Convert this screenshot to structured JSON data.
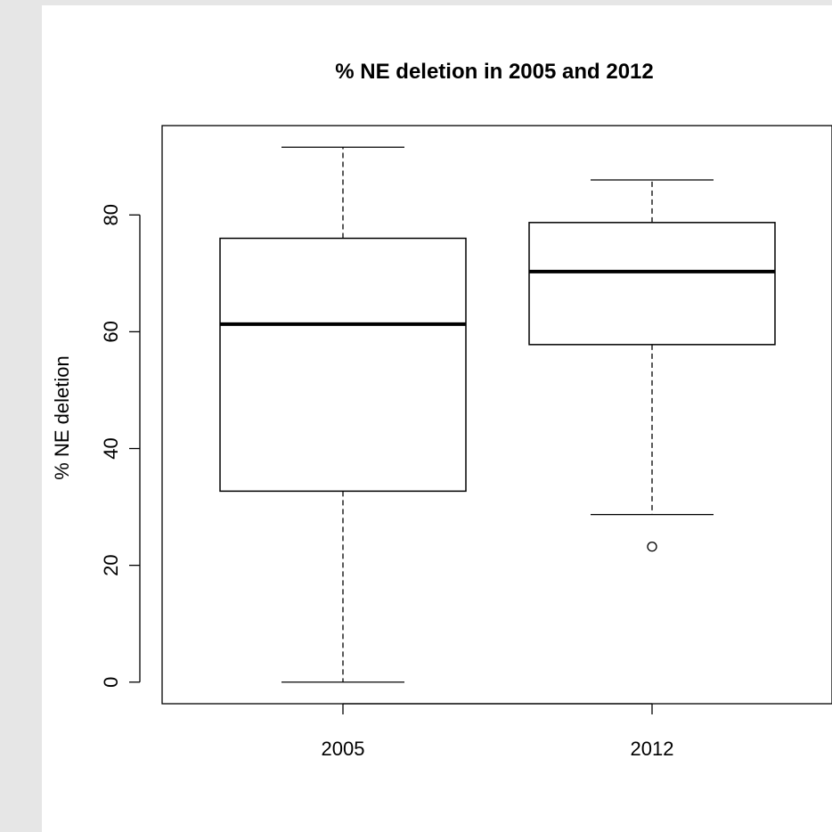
{
  "chart_data": {
    "type": "boxplot",
    "title": "% NE deletion in 2005 and 2012",
    "xlabel": "",
    "ylabel": "% NE deletion",
    "categories": [
      "2005",
      "2012"
    ],
    "y_ticks": [
      0,
      20,
      40,
      60,
      80
    ],
    "y_tick_labels": [
      "0",
      "20",
      "40",
      "60",
      "80"
    ],
    "ylim": [
      -3.7,
      95.3
    ],
    "series": [
      {
        "category": "2005",
        "whisker_low": 0,
        "q1": 32.7,
        "median": 61.3,
        "q3": 76.0,
        "whisker_high": 91.6,
        "outliers": []
      },
      {
        "category": "2012",
        "whisker_low": 28.7,
        "q1": 57.8,
        "median": 70.3,
        "q3": 78.7,
        "whisker_high": 86.0,
        "outliers": [
          23.2
        ]
      }
    ],
    "grid": false,
    "legend": "none",
    "colors": {
      "box_fill": "#ffffff",
      "stroke": "#000000",
      "background": "#ffffff",
      "frame": "#e6e6e6"
    }
  }
}
